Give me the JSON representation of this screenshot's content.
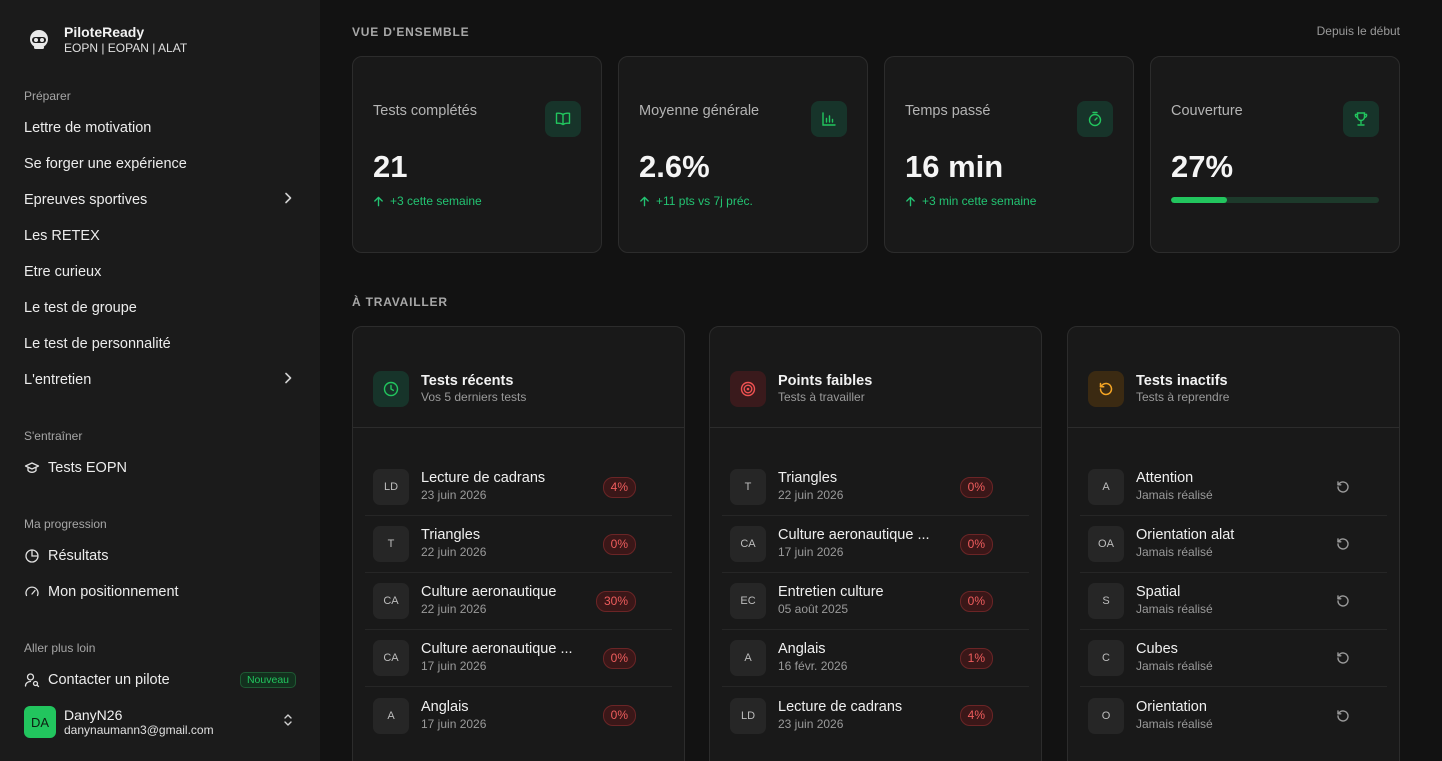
{
  "brand": {
    "title": "PiloteReady",
    "subtitle": "EOPN | EOPAN | ALAT"
  },
  "sidebar": {
    "sections": {
      "prepare": "Préparer",
      "train": "S'entraîner",
      "progress": "Ma progression",
      "further": "Aller plus loin"
    },
    "prepare_items": [
      "Lettre de motivation",
      "Se forger une expérience",
      "Epreuves sportives",
      "Les RETEX",
      "Etre curieux",
      "Le test de groupe",
      "Le test de personnalité",
      "L'entretien"
    ],
    "train_items": [
      "Tests EOPN"
    ],
    "progress_items": [
      "Résultats",
      "Mon positionnement"
    ],
    "further_items": [
      "Contacter un pilote"
    ],
    "new_badge": "Nouveau"
  },
  "user": {
    "initials": "DA",
    "name": "DanyN26",
    "email": "danynaumann3@gmail.com"
  },
  "overview": {
    "heading": "VUE D'ENSEMBLE",
    "period": "Depuis le début",
    "cards": [
      {
        "label": "Tests complétés",
        "value": "21",
        "delta": "+3 cette semaine",
        "icon": "book-open-icon"
      },
      {
        "label": "Moyenne générale",
        "value": "2.6%",
        "delta": "+11 pts vs 7j préc.",
        "icon": "bar-chart-icon"
      },
      {
        "label": "Temps passé",
        "value": "16 min",
        "delta": "+3 min cette semaine",
        "icon": "timer-icon"
      },
      {
        "label": "Couverture",
        "value": "27%",
        "progress": 0.27,
        "icon": "trophy-icon"
      }
    ]
  },
  "work": {
    "heading": "À TRAVAILLER",
    "recent": {
      "title": "Tests récents",
      "subtitle": "Vos 5 derniers tests",
      "rows": [
        {
          "abbr": "LD",
          "name": "Lecture de cadrans",
          "date": "23 juin 2026",
          "score": "4%"
        },
        {
          "abbr": "T",
          "name": "Triangles",
          "date": "22 juin 2026",
          "score": "0%"
        },
        {
          "abbr": "CA",
          "name": "Culture aeronautique",
          "date": "22 juin 2026",
          "score": "30%"
        },
        {
          "abbr": "CA",
          "name": "Culture aeronautique ...",
          "date": "17 juin 2026",
          "score": "0%"
        },
        {
          "abbr": "A",
          "name": "Anglais",
          "date": "17 juin 2026",
          "score": "0%"
        }
      ]
    },
    "weak": {
      "title": "Points faibles",
      "subtitle": "Tests à travailler",
      "rows": [
        {
          "abbr": "T",
          "name": "Triangles",
          "date": "22 juin 2026",
          "score": "0%"
        },
        {
          "abbr": "CA",
          "name": "Culture aeronautique ...",
          "date": "17 juin 2026",
          "score": "0%"
        },
        {
          "abbr": "EC",
          "name": "Entretien culture",
          "date": "05 août 2025",
          "score": "0%"
        },
        {
          "abbr": "A",
          "name": "Anglais",
          "date": "16 févr. 2026",
          "score": "1%"
        },
        {
          "abbr": "LD",
          "name": "Lecture de cadrans",
          "date": "23 juin 2026",
          "score": "4%"
        }
      ]
    },
    "inactive": {
      "title": "Tests inactifs",
      "subtitle": "Tests à reprendre",
      "rows": [
        {
          "abbr": "A",
          "name": "Attention",
          "date": "Jamais réalisé"
        },
        {
          "abbr": "OA",
          "name": "Orientation alat",
          "date": "Jamais réalisé"
        },
        {
          "abbr": "S",
          "name": "Spatial",
          "date": "Jamais réalisé"
        },
        {
          "abbr": "C",
          "name": "Cubes",
          "date": "Jamais réalisé"
        },
        {
          "abbr": "O",
          "name": "Orientation",
          "date": "Jamais réalisé"
        }
      ]
    }
  },
  "colors": {
    "accent": "#22c55e",
    "danger": "#ef5d5d",
    "warning": "#f5a524",
    "target": "#f05252"
  }
}
